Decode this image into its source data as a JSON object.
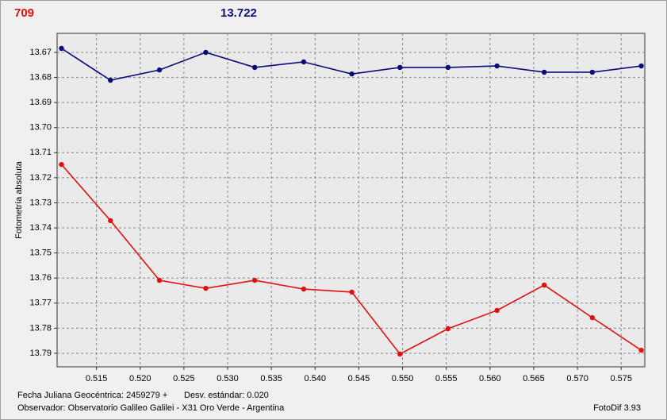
{
  "header": {
    "left": "709",
    "right": "13.722"
  },
  "chart_data": {
    "type": "line",
    "y_label": "Fotometría absoluta",
    "x": [
      0.511,
      0.5166,
      0.5222,
      0.5275,
      0.5331,
      0.5387,
      0.5442,
      0.5497,
      0.5552,
      0.5608,
      0.5662,
      0.5717,
      0.5773
    ],
    "series": [
      {
        "color": "#0a0a78",
        "values": [
          13.6684,
          13.6811,
          13.677,
          13.67,
          13.676,
          13.6738,
          13.6786,
          13.676,
          13.676,
          13.6754,
          13.6779,
          13.6779,
          13.6754
        ]
      },
      {
        "color": "#e01010",
        "values": [
          13.7147,
          13.7371,
          13.7609,
          13.7641,
          13.7609,
          13.7644,
          13.7656,
          13.7903,
          13.7802,
          13.7729,
          13.7628,
          13.7758,
          13.7888
        ]
      }
    ],
    "xlim": [
      0.5105,
      0.5777
    ],
    "ylim": [
      13.6624,
      13.7954
    ],
    "y_inverted": true,
    "grid": true,
    "xticks": [
      0.515,
      {
        "value": 0.52,
        "label": "0.520"
      },
      0.525,
      {
        "value": 0.53,
        "label": "0.530"
      },
      0.535,
      {
        "value": 0.54,
        "label": "0.540"
      },
      0.545,
      {
        "value": 0.55,
        "label": "0.550"
      },
      0.555,
      {
        "value": 0.56,
        "label": "0.560"
      },
      0.565,
      {
        "value": 0.57,
        "label": "0.570"
      },
      0.575
    ],
    "yticks": [
      13.67,
      13.68,
      13.69,
      {
        "value": 13.7,
        "label": "13.70"
      },
      13.71,
      13.72,
      13.73,
      13.74,
      13.75,
      13.76,
      13.77,
      13.78,
      13.79
    ]
  },
  "footer": {
    "date": "Fecha Juliana Geocéntrica: 2459279 +",
    "stdev": "Desv. estándar: 0.020",
    "observer": "Observador: Observatorio Galileo Galilei - X31 Oro Verde - Argentina",
    "version": "FotoDif 3.93"
  }
}
